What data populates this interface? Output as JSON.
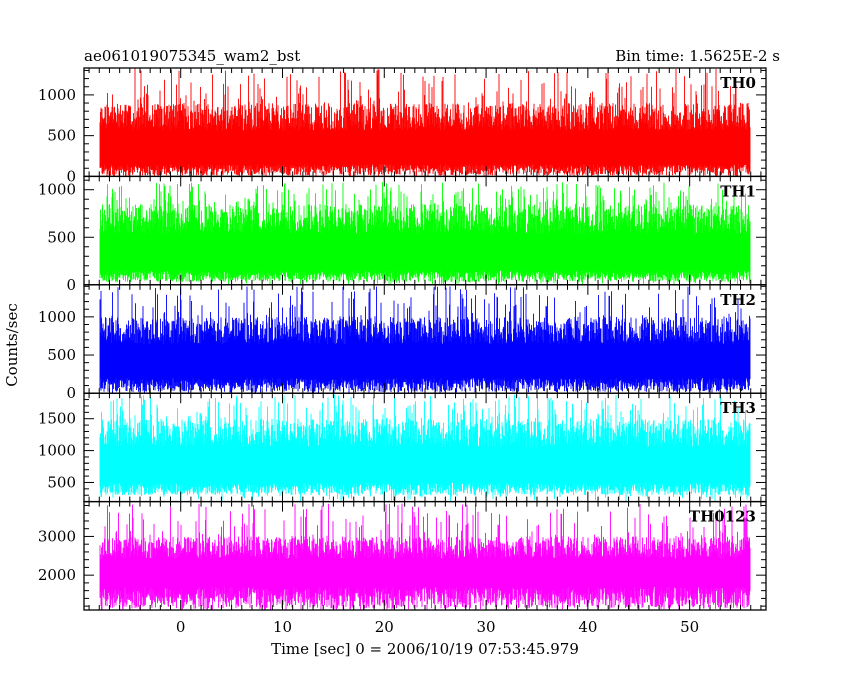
{
  "header": {
    "title": "ae061019075345_wam2_bst",
    "bin_time": "Bin time: 1.5625E-2 s"
  },
  "chart_data": {
    "type": "line",
    "xlabel": "Time [sec] 0 = 2006/10/19 07:53:45.979",
    "ylabel": "Counts/sec",
    "xlim": [
      -9.5,
      57.5
    ],
    "xticks": [
      0,
      10,
      20,
      30,
      40,
      50
    ],
    "data_x_range": [
      -8,
      56
    ],
    "series": [
      {
        "name": "TH0",
        "color": "#ff0000",
        "ylim": [
          0,
          1330
        ],
        "yticks": [
          0,
          500,
          1000
        ],
        "base": 10,
        "typical_low": 150,
        "typical_high": 900,
        "peak": 1330
      },
      {
        "name": "TH1",
        "color": "#00ff00",
        "ylim": [
          0,
          1140
        ],
        "yticks": [
          0,
          500,
          1000
        ],
        "base": 30,
        "typical_low": 150,
        "typical_high": 850,
        "peak": 1080
      },
      {
        "name": "TH2",
        "color": "#0000ff",
        "ylim": [
          0,
          1420
        ],
        "yticks": [
          0,
          500,
          1000
        ],
        "base": 20,
        "typical_low": 200,
        "typical_high": 1000,
        "peak": 1400
      },
      {
        "name": "TH3",
        "color": "#00ffff",
        "ylim": [
          200,
          1900
        ],
        "yticks": [
          500,
          1000,
          1500
        ],
        "base": 300,
        "typical_low": 500,
        "typical_high": 1500,
        "peak": 1880
      },
      {
        "name": "TH0123",
        "color": "#ff00ff",
        "ylim": [
          1100,
          3900
        ],
        "yticks": [
          2000,
          3000
        ],
        "base": 1150,
        "typical_low": 1700,
        "typical_high": 3000,
        "peak": 3850
      }
    ]
  }
}
